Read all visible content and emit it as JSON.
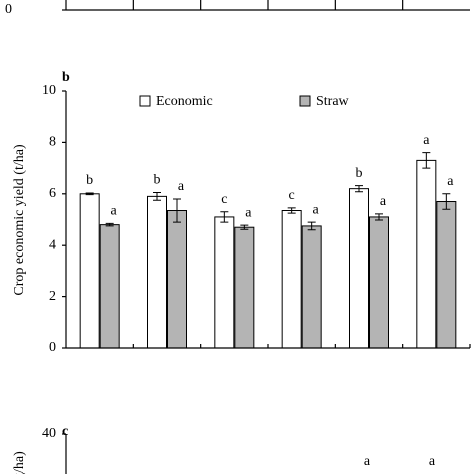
{
  "chart_data": [
    {
      "type": "axis-fragment",
      "yticks": [
        0
      ]
    },
    {
      "type": "bar",
      "title": "b",
      "y_label": "Crop economic yield (t/ha)",
      "categories": [
        null,
        null,
        null,
        null,
        null,
        null
      ],
      "ylim": [
        0,
        10
      ],
      "yticks": [
        0,
        2,
        4,
        6,
        8,
        10
      ],
      "series": [
        {
          "name": "Economic",
          "color": "#ffffff",
          "values": [
            6.0,
            5.9,
            5.1,
            5.35,
            6.2,
            7.3
          ],
          "errors": [
            0.03,
            0.15,
            0.2,
            0.1,
            0.12,
            0.3
          ],
          "letters": [
            "b",
            "b",
            "c",
            "c",
            "b",
            "a"
          ]
        },
        {
          "name": "Straw",
          "color": "#b4b4b4",
          "values": [
            4.8,
            5.35,
            4.7,
            4.75,
            5.1,
            5.7
          ],
          "errors": [
            0.05,
            0.45,
            0.08,
            0.15,
            0.12,
            0.3
          ],
          "letters": [
            "a",
            "a",
            "a",
            "a",
            "a",
            "a"
          ]
        }
      ]
    },
    {
      "type": "axis-fragment",
      "title": "c",
      "y_label": "g/ha)",
      "yticks": [
        40
      ],
      "annotations": [
        "a",
        "a"
      ]
    }
  ]
}
